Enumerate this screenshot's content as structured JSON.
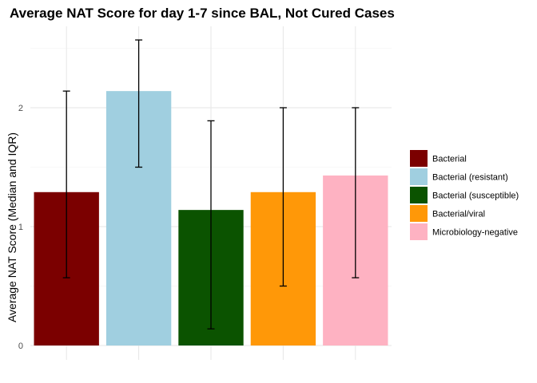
{
  "chart_data": {
    "type": "bar",
    "title": "Average NAT Score for day 1-7 since BAL, Not Cured Cases",
    "xlabel": "",
    "ylabel": "Average NAT Score (Median and IQR)",
    "ylim": [
      0,
      2.58
    ],
    "yticks": [
      0,
      1,
      2
    ],
    "grid": true,
    "legend_position": "right",
    "categories": [
      "Bacterial",
      "Bacterial (resistant)",
      "Bacterial (susceptible)",
      "Bacterial/viral",
      "Microbiology-negative"
    ],
    "values": [
      1.29,
      2.14,
      1.14,
      1.29,
      1.43
    ],
    "error_low": [
      0.57,
      1.5,
      0.14,
      0.5,
      0.57
    ],
    "error_high": [
      2.14,
      2.57,
      1.89,
      2.0,
      2.0
    ],
    "colors": [
      "#7b0000",
      "#a0cfe0",
      "#0b5300",
      "#ff9808",
      "#feb2c2"
    ]
  }
}
